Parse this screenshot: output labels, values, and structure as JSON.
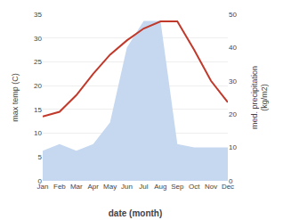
{
  "chart_data": {
    "type": "line",
    "xlabel": "date (month)",
    "ylabel": "max temp (C)",
    "y2label": "med. precipitation\n(kg/m2)",
    "categories": [
      "Jan",
      "Feb",
      "Mar",
      "Apr",
      "May",
      "Jun",
      "Jul",
      "Aug",
      "Sep",
      "Oct",
      "Nov",
      "Dec"
    ],
    "series": [
      {
        "type": "area",
        "axis": "y2",
        "color": "#c5d8f0",
        "values": [
          9.0,
          11.0,
          9.0,
          11.0,
          17.5,
          40.0,
          48.0,
          48.0,
          11.0,
          10.0,
          10.0,
          10.0
        ]
      },
      {
        "type": "line",
        "color": "#c0392b",
        "values": [
          13.5,
          14.5,
          18.0,
          22.5,
          26.5,
          29.5,
          32.0,
          33.5,
          33.5,
          27.5,
          21.0,
          16.5
        ]
      }
    ],
    "ylim": [
      0,
      35
    ],
    "yticks": [
      0,
      5,
      10,
      15,
      20,
      25,
      30,
      35
    ],
    "y2lim": [
      0,
      50
    ],
    "y2ticks": [
      0,
      10,
      20,
      30,
      40,
      50
    ],
    "grid": true
  }
}
